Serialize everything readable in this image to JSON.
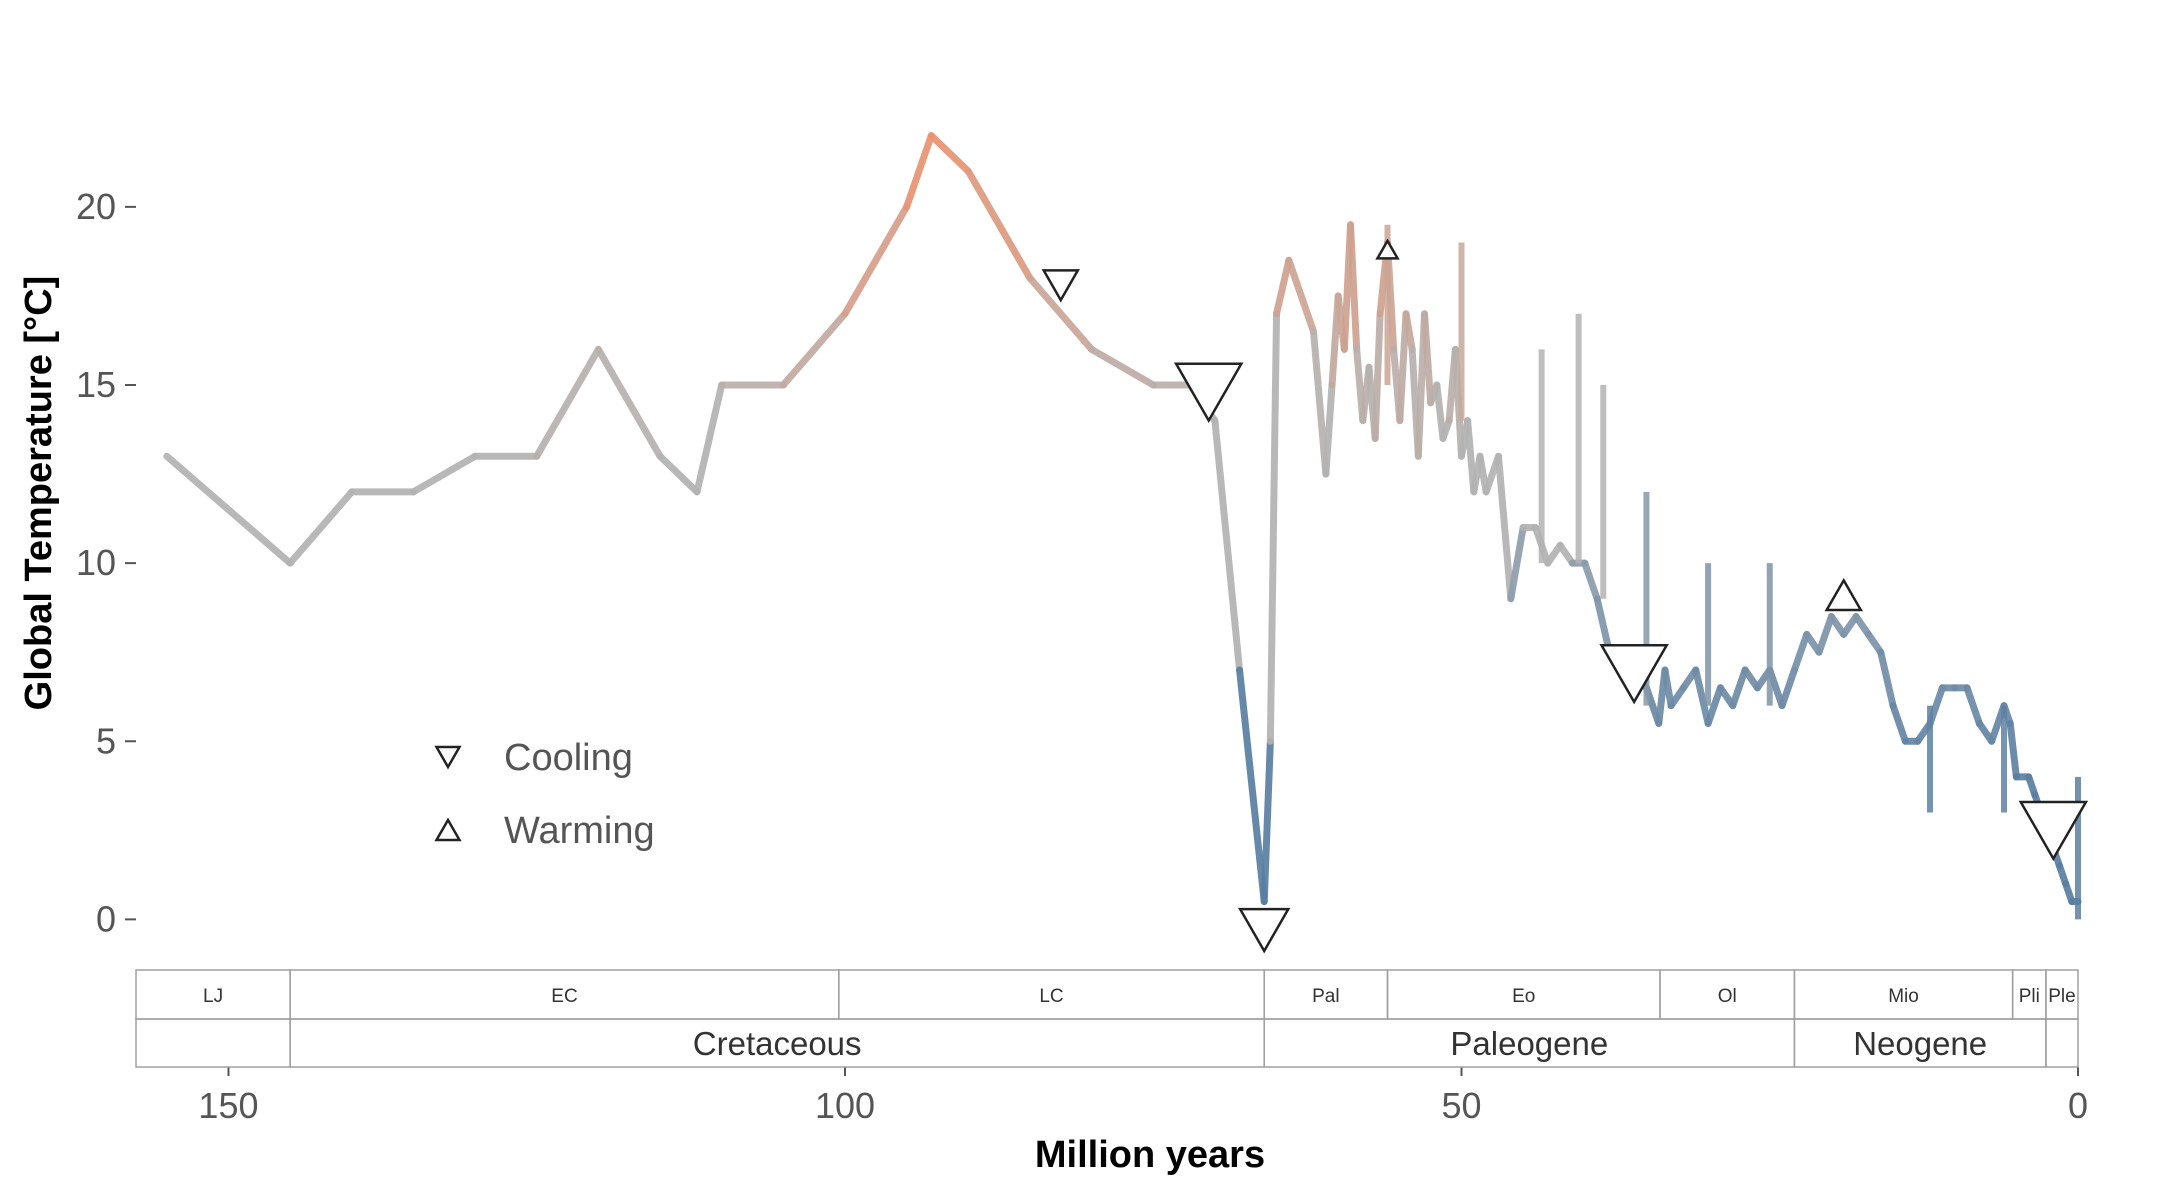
{
  "chart_data": {
    "type": "line",
    "title": "",
    "xlabel": "Million years",
    "ylabel": "Global Temperature [°C]",
    "xlim": [
      157.5,
      0
    ],
    "ylim": [
      -1,
      23
    ],
    "x_ticks": [
      150,
      100,
      50,
      0
    ],
    "y_ticks": [
      0,
      5,
      10,
      15,
      20
    ],
    "grid": false,
    "color_scale": {
      "cold": "#5a7fa3",
      "mid": "#b3b3b3",
      "warm": "#e89472"
    },
    "series": [
      {
        "x": [
          155,
          145,
          140,
          135,
          130,
          125,
          120,
          115,
          112,
          110,
          105,
          100,
          95,
          93,
          90,
          85,
          80,
          75,
          72,
          70,
          68,
          66,
          65.5,
          65,
          64,
          62,
          61,
          60.5,
          60,
          59.5,
          59,
          58.5,
          58,
          57.5,
          57,
          56.6,
          56,
          55.5,
          55,
          54.5,
          54,
          53.5,
          53,
          52.5,
          52,
          51.5,
          51,
          50.5,
          50,
          49.5,
          49,
          48.5,
          48,
          47,
          46,
          45,
          44,
          43,
          42,
          41,
          40,
          39,
          38,
          37,
          36,
          35,
          34,
          33.5,
          33,
          32,
          31,
          30,
          29,
          28,
          27,
          26,
          25,
          24,
          23,
          22,
          21,
          20,
          19,
          18,
          17,
          16,
          15,
          14,
          13,
          12,
          11,
          10,
          9,
          8,
          7,
          6,
          5.5,
          5,
          4,
          3.5,
          3,
          2.5,
          2,
          1.5,
          1,
          0.5,
          0
        ],
        "y": [
          13,
          10,
          12,
          12,
          13,
          13,
          16,
          13,
          12,
          15,
          15,
          17,
          20,
          22,
          21,
          18,
          16,
          15,
          15,
          14,
          7,
          0.5,
          5,
          17,
          18.5,
          16.5,
          12.5,
          15,
          17.5,
          16,
          19.5,
          16,
          14,
          15.5,
          13.5,
          17,
          19,
          16,
          14,
          17,
          16,
          13,
          17,
          14.5,
          15,
          13.5,
          14,
          16,
          13,
          14,
          12,
          13,
          12,
          13,
          9,
          11,
          11,
          10,
          10.5,
          10,
          10,
          9,
          7.5,
          7,
          7,
          6.5,
          5.5,
          7,
          6,
          6.5,
          7,
          5.5,
          6.5,
          6,
          7,
          6.5,
          7,
          6,
          7,
          8,
          7.5,
          8.5,
          8,
          8.5,
          8,
          7.5,
          6,
          5,
          5,
          5.5,
          6.5,
          6.5,
          6.5,
          5.5,
          5,
          6,
          5.5,
          4,
          4,
          3.5,
          3,
          2.5,
          2,
          1.5,
          1,
          0.5,
          0.5
        ]
      }
    ],
    "spikes": [
      {
        "x": 56,
        "y_from": 15,
        "y_to": 19.5
      },
      {
        "x": 50,
        "y_from": 14,
        "y_to": 19
      },
      {
        "x": 43.5,
        "y_from": 10,
        "y_to": 16
      },
      {
        "x": 40.5,
        "y_from": 10,
        "y_to": 17
      },
      {
        "x": 38.5,
        "y_from": 9,
        "y_to": 15
      },
      {
        "x": 35,
        "y_from": 6,
        "y_to": 12
      },
      {
        "x": 30,
        "y_from": 6,
        "y_to": 10
      },
      {
        "x": 25,
        "y_from": 6,
        "y_to": 10
      },
      {
        "x": 12,
        "y_from": 3,
        "y_to": 6
      },
      {
        "x": 6,
        "y_from": 3,
        "y_to": 6
      },
      {
        "x": 0,
        "y_from": 0,
        "y_to": 4
      }
    ],
    "events": [
      {
        "type": "cooling",
        "x": 82.5,
        "y": 17.8,
        "size": "small"
      },
      {
        "type": "cooling",
        "x": 70.5,
        "y": 14.8,
        "size": "large"
      },
      {
        "type": "cooling",
        "x": 66,
        "y": -0.3,
        "size": "medium"
      },
      {
        "type": "warming",
        "x": 56,
        "y": 18.8,
        "size": "tiny"
      },
      {
        "type": "cooling",
        "x": 36,
        "y": 6.9,
        "size": "large"
      },
      {
        "type": "warming",
        "x": 19,
        "y": 9.1,
        "size": "small"
      },
      {
        "type": "cooling",
        "x": 2,
        "y": 2.5,
        "size": "large"
      }
    ],
    "legend": {
      "placement": "bottom-left",
      "entries": [
        {
          "symbol": "cooling",
          "label": "Cooling"
        },
        {
          "symbol": "warming",
          "label": "Warming"
        }
      ]
    },
    "epochs": [
      {
        "label": "LJ",
        "start": 157.5,
        "end": 145
      },
      {
        "label": "EC",
        "start": 145,
        "end": 100.5
      },
      {
        "label": "LC",
        "start": 100.5,
        "end": 66
      },
      {
        "label": "Pal",
        "start": 66,
        "end": 56
      },
      {
        "label": "Eo",
        "start": 56,
        "end": 33.9
      },
      {
        "label": "Ol",
        "start": 33.9,
        "end": 23
      },
      {
        "label": "Mio",
        "start": 23,
        "end": 5.3
      },
      {
        "label": "Pli",
        "start": 5.3,
        "end": 2.6
      },
      {
        "label": "Ple",
        "start": 2.6,
        "end": 0
      }
    ],
    "periods": [
      {
        "label": "",
        "start": 157.5,
        "end": 145
      },
      {
        "label": "Cretaceous",
        "start": 145,
        "end": 66
      },
      {
        "label": "Paleogene",
        "start": 66,
        "end": 23
      },
      {
        "label": "Neogene",
        "start": 23,
        "end": 2.6
      },
      {
        "label": "",
        "start": 2.6,
        "end": 0
      }
    ]
  }
}
